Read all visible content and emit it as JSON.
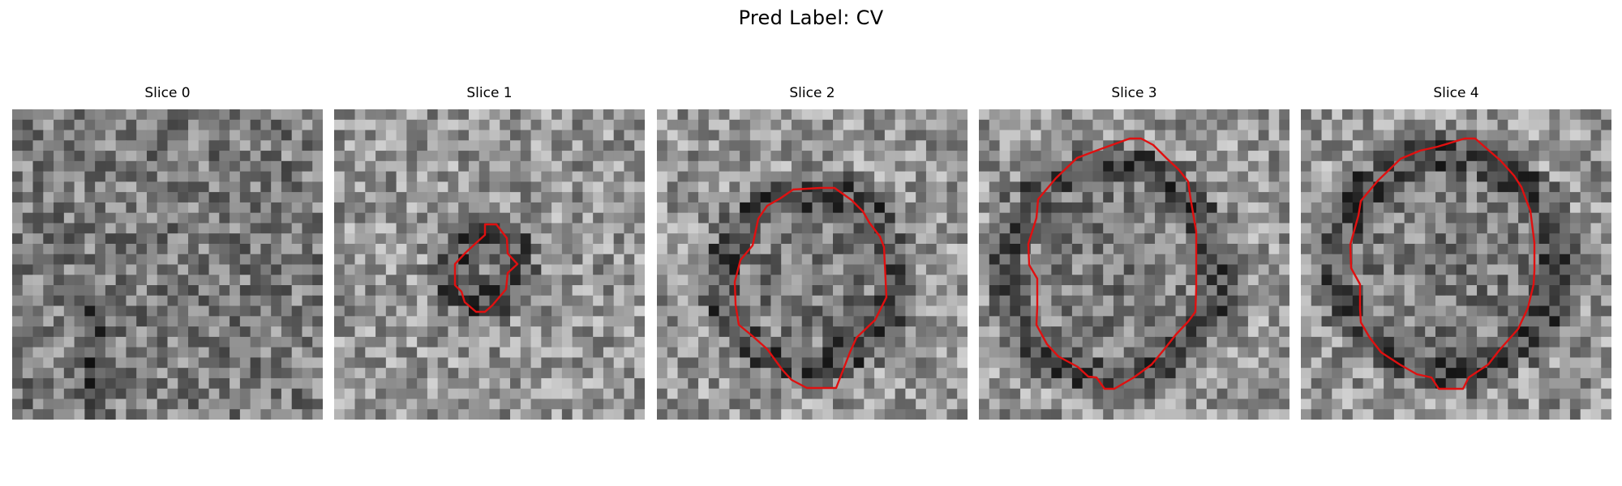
{
  "figure": {
    "suptitle": "Pred Label: CV",
    "contour_color": "#e01010",
    "colormap": "gray",
    "grid_size": 30,
    "panels": [
      {
        "title": "Slice 0",
        "has_contour": false,
        "seed": 11
      },
      {
        "title": "Slice 1",
        "has_contour": true,
        "seed": 23
      },
      {
        "title": "Slice 2",
        "has_contour": true,
        "seed": 37
      },
      {
        "title": "Slice 3",
        "has_contour": true,
        "seed": 41
      },
      {
        "title": "Slice 4",
        "has_contour": true,
        "seed": 53
      }
    ]
  }
}
